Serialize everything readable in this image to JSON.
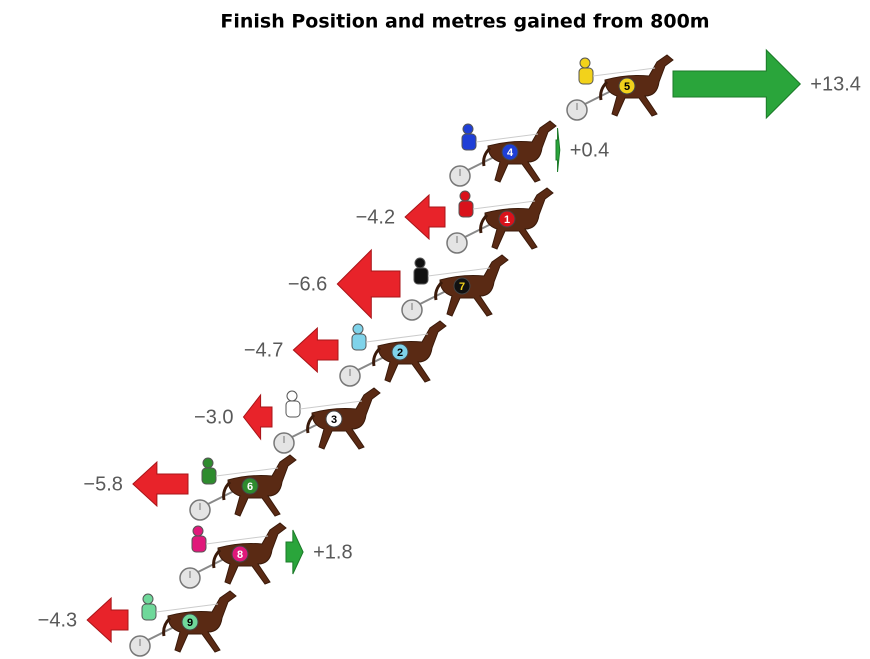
{
  "chart_data": {
    "type": "arrow",
    "title": "Finish Position and metres gained from 800m",
    "categories": [
      "5",
      "4",
      "1",
      "7",
      "2",
      "3",
      "6",
      "8",
      "9"
    ],
    "values": [
      13.4,
      0.4,
      -4.2,
      -6.6,
      -4.7,
      -3.0,
      -5.8,
      1.8,
      -4.3
    ],
    "value_labels": [
      "+13.4",
      "+0.4",
      "−4.2",
      "−6.6",
      "−4.7",
      "−3.0",
      "−5.8",
      "+1.8",
      "−4.3"
    ],
    "colors": [
      "#f2d21b",
      "#1f3fd6",
      "#d9121b",
      "#111111",
      "#7fd3ea",
      "#ffffff",
      "#2e8b2e",
      "#e0187a",
      "#6fd89a"
    ],
    "positive_color": "#2aa53b",
    "negative_color": "#e8232a"
  }
}
